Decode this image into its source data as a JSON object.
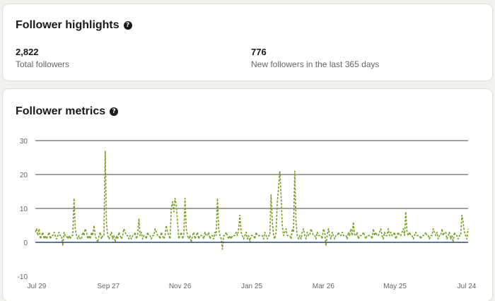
{
  "highlights": {
    "title": "Follower highlights",
    "help_icon": "question-circle-icon",
    "total": {
      "value": "2,822",
      "label": "Total followers"
    },
    "new": {
      "value": "776",
      "label": "New followers in the last 365 days"
    }
  },
  "metrics": {
    "title": "Follower metrics",
    "help_icon": "question-circle-icon"
  },
  "chart_data": {
    "type": "line",
    "ylim": [
      -10,
      30
    ],
    "yticks": [
      30,
      20,
      10,
      0,
      -10
    ],
    "xticks": [
      "Jul 29",
      "Sep 27",
      "Nov 26",
      "Jan 25",
      "Mar 26",
      "May 25",
      "Jul 24"
    ],
    "grid": true,
    "colors": {
      "follower_gain": "#7a9a2a",
      "baseline": "#1f4e79",
      "grid": "#444444"
    },
    "series": [
      {
        "style": "dashed",
        "values": [
          3,
          4,
          2,
          4,
          1,
          2,
          3,
          1,
          2,
          1,
          2,
          3,
          1,
          2,
          2,
          3,
          2,
          1,
          2,
          3,
          2,
          2,
          -1,
          3,
          2,
          2,
          1,
          2,
          1,
          2,
          2,
          13,
          4,
          2,
          1,
          2,
          1,
          1,
          3,
          2,
          4,
          3,
          1,
          2,
          1,
          3,
          2,
          5,
          2,
          1,
          0,
          2,
          3,
          1,
          2,
          2,
          27,
          6,
          2,
          1,
          2,
          3,
          1,
          2,
          0,
          2,
          1,
          3,
          2,
          1,
          2,
          4,
          3,
          2,
          2,
          1,
          2,
          1,
          2,
          2,
          3,
          1,
          2,
          7,
          2,
          3,
          1,
          2,
          2,
          1,
          3,
          2,
          2,
          1,
          2,
          2,
          4,
          3,
          2,
          2,
          1,
          3,
          2,
          1,
          2,
          5,
          3,
          2,
          1,
          10,
          12,
          9,
          13,
          11,
          6,
          1,
          2,
          3,
          1,
          2,
          13,
          4,
          2,
          1,
          2,
          0,
          2,
          3,
          1,
          2,
          3,
          1,
          2,
          2,
          2,
          1,
          3,
          2,
          2,
          3,
          1,
          2,
          2,
          1,
          3,
          2,
          13,
          4,
          2,
          1,
          -2,
          2,
          2,
          3,
          2,
          1,
          2,
          1,
          2,
          2,
          2,
          3,
          2,
          4,
          8,
          3,
          2,
          1,
          2,
          3,
          1,
          2,
          0,
          2,
          2,
          2,
          1,
          3,
          2,
          2,
          2,
          2,
          2,
          1,
          3,
          2,
          1,
          2,
          2,
          14,
          6,
          2,
          1,
          3,
          12,
          16,
          21,
          14,
          5,
          2,
          3,
          4,
          2,
          2,
          2,
          1,
          4,
          3,
          21,
          6,
          2,
          1,
          2,
          1,
          3,
          4,
          2,
          1,
          3,
          2,
          2,
          4,
          3,
          2,
          2,
          1,
          3,
          2,
          2,
          2,
          1,
          4,
          3,
          -1,
          2,
          4,
          2,
          1,
          3,
          2,
          1,
          2,
          2,
          3,
          2,
          2,
          3,
          2,
          2,
          2,
          1,
          3,
          2,
          4,
          2,
          6,
          2,
          2,
          3,
          1,
          2,
          2,
          2,
          3,
          2,
          1,
          2,
          2,
          2,
          2,
          1,
          4,
          2,
          3,
          2,
          2,
          3,
          4,
          2,
          1,
          3,
          2,
          2,
          4,
          2,
          3,
          2,
          2,
          3,
          1,
          2,
          3,
          2,
          2,
          3,
          4,
          2,
          9,
          3,
          2,
          3,
          2,
          2,
          1,
          2,
          3,
          2,
          2,
          2,
          1,
          2,
          2,
          2,
          3,
          2,
          2,
          1,
          2,
          2,
          4,
          3,
          2,
          3,
          1,
          2,
          2,
          4,
          2,
          3,
          3,
          1,
          2,
          3,
          1,
          2,
          0,
          3,
          2,
          2,
          1,
          2,
          2,
          8,
          6,
          3,
          2,
          1,
          4
        ]
      }
    ],
    "baseline": 0
  }
}
